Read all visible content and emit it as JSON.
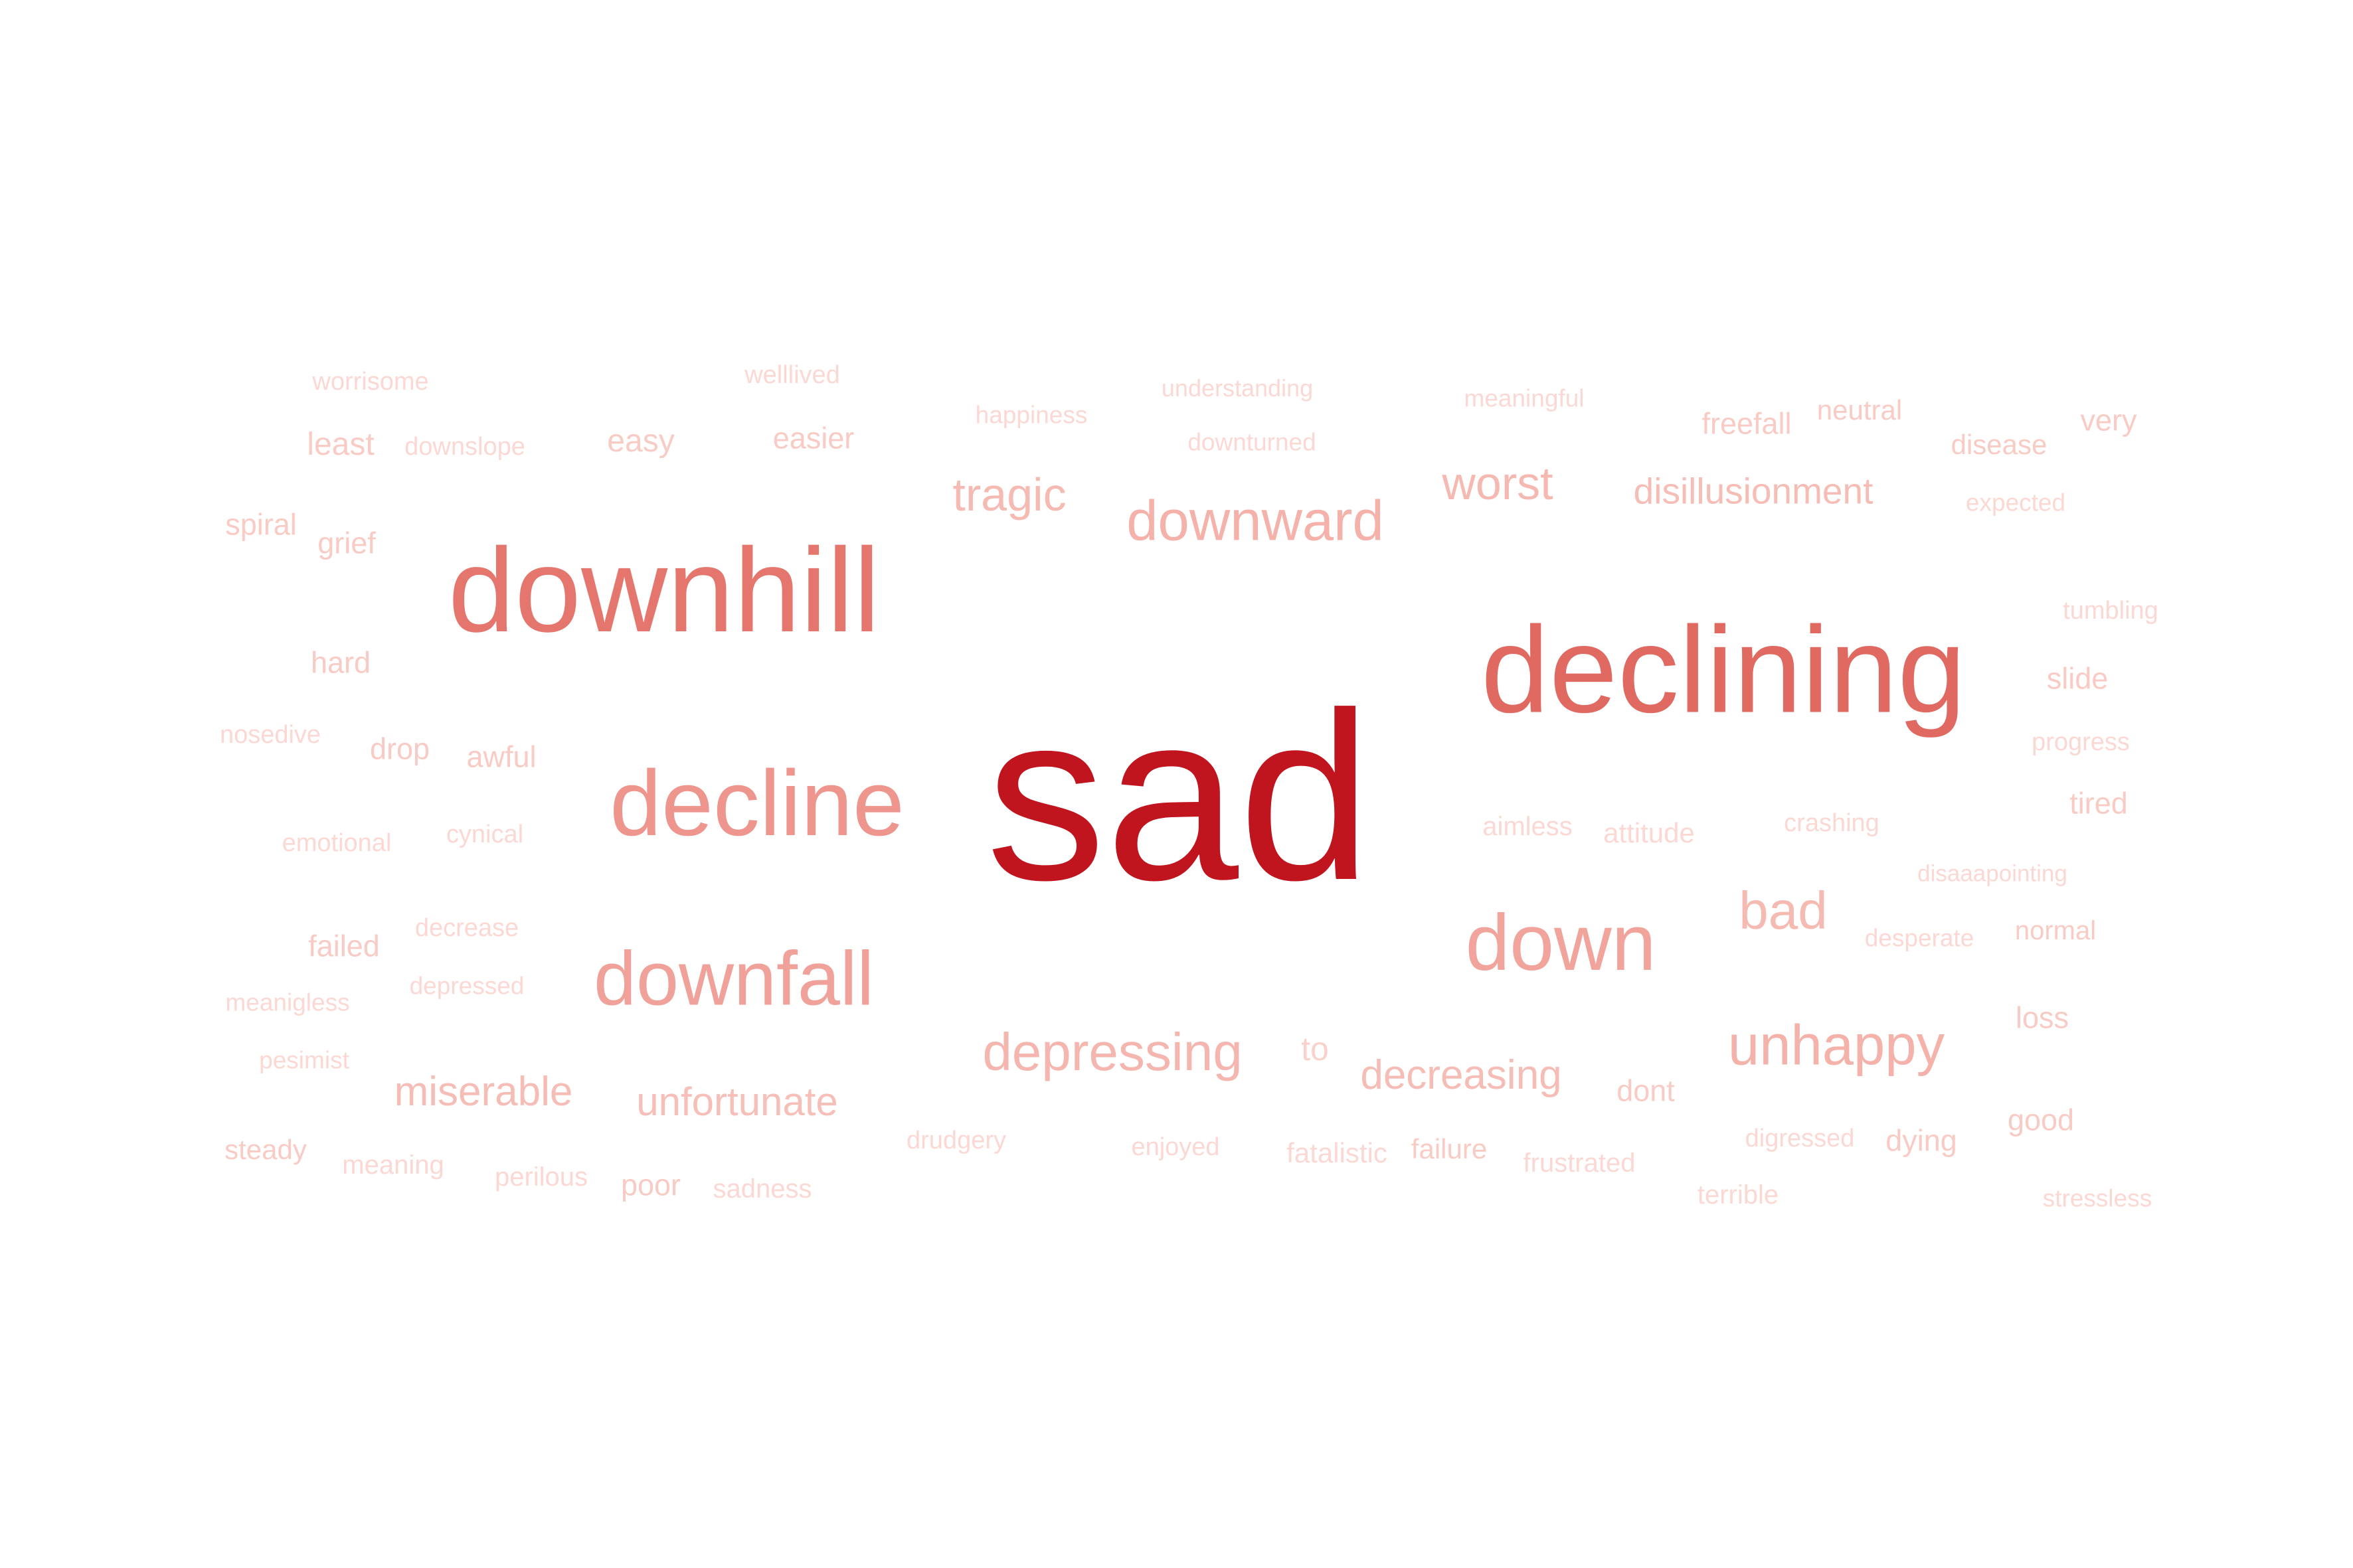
{
  "words": [
    {
      "text": "sad",
      "color": "#c0141f"
    },
    {
      "text": "declining",
      "color": "#e06a62"
    },
    {
      "text": "downhill",
      "color": "#e5766d"
    },
    {
      "text": "decline",
      "color": "#ee958d"
    },
    {
      "text": "downfall",
      "color": "#f0a199"
    },
    {
      "text": "down",
      "color": "#f1a49c"
    },
    {
      "text": "downward",
      "color": "#f4b2aa"
    },
    {
      "text": "unhappy",
      "color": "#f4b2aa"
    },
    {
      "text": "depressing",
      "color": "#f4b6ae"
    },
    {
      "text": "worst",
      "color": "#f5b9b1"
    },
    {
      "text": "tragic",
      "color": "#f5bab2"
    },
    {
      "text": "bad",
      "color": "#f5bab2"
    },
    {
      "text": "disillusionment",
      "color": "#f6bdb6"
    },
    {
      "text": "decreasing",
      "color": "#f6bdb6"
    },
    {
      "text": "miserable",
      "color": "#f6bdb6"
    },
    {
      "text": "unfortunate",
      "color": "#f6bfb8"
    },
    {
      "text": "to",
      "color": "#f9d2cc"
    },
    {
      "text": "worrisome",
      "color": "#fbd8d3"
    },
    {
      "text": "welllived",
      "color": "#fbd8d3"
    },
    {
      "text": "understanding",
      "color": "#fbd8d3"
    },
    {
      "text": "meaningful",
      "color": "#fbd8d3"
    },
    {
      "text": "happiness",
      "color": "#fbd8d3"
    },
    {
      "text": "neutral",
      "color": "#f8cbc5"
    },
    {
      "text": "very",
      "color": "#f8cbc5"
    },
    {
      "text": "freefall",
      "color": "#f8cbc5"
    },
    {
      "text": "least",
      "color": "#f8cbc5"
    },
    {
      "text": "downslope",
      "color": "#fbd8d3"
    },
    {
      "text": "easy",
      "color": "#f8cbc5"
    },
    {
      "text": "easier",
      "color": "#f8cbc5"
    },
    {
      "text": "downturned",
      "color": "#fbd8d3"
    },
    {
      "text": "disease",
      "color": "#f8cbc5"
    },
    {
      "text": "expected",
      "color": "#fbd8d3"
    },
    {
      "text": "spiral",
      "color": "#f8cbc5"
    },
    {
      "text": "grief",
      "color": "#f8cbc5"
    },
    {
      "text": "tumbling",
      "color": "#fbd8d3"
    },
    {
      "text": "hard",
      "color": "#f8cbc5"
    },
    {
      "text": "slide",
      "color": "#f8cbc5"
    },
    {
      "text": "nosedive",
      "color": "#fbd8d3"
    },
    {
      "text": "drop",
      "color": "#f8cbc5"
    },
    {
      "text": "awful",
      "color": "#f8cbc5"
    },
    {
      "text": "progress",
      "color": "#fbd8d3"
    },
    {
      "text": "tired",
      "color": "#f8cbc5"
    },
    {
      "text": "emotional",
      "color": "#fbd8d3"
    },
    {
      "text": "cynical",
      "color": "#fbd8d3"
    },
    {
      "text": "aimless",
      "color": "#fbd8d3"
    },
    {
      "text": "attitude",
      "color": "#fbd8d3"
    },
    {
      "text": "crashing",
      "color": "#fbd8d3"
    },
    {
      "text": "disaaapointing",
      "color": "#fbd8d3"
    },
    {
      "text": "failed",
      "color": "#f8cbc5"
    },
    {
      "text": "decrease",
      "color": "#fbd8d3"
    },
    {
      "text": "desperate",
      "color": "#fbd8d3"
    },
    {
      "text": "normal",
      "color": "#f8cbc5"
    },
    {
      "text": "meanigless",
      "color": "#fbd8d3"
    },
    {
      "text": "depressed",
      "color": "#fbd8d3"
    },
    {
      "text": "loss",
      "color": "#f8cbc5"
    },
    {
      "text": "pesimist",
      "color": "#fbd8d3"
    },
    {
      "text": "dont",
      "color": "#f8cbc5"
    },
    {
      "text": "good",
      "color": "#f8cbc5"
    },
    {
      "text": "drudgery",
      "color": "#fbd8d3"
    },
    {
      "text": "digressed",
      "color": "#fbd8d3"
    },
    {
      "text": "dying",
      "color": "#f8cbc5"
    },
    {
      "text": "steady",
      "color": "#f8cbc5"
    },
    {
      "text": "enjoyed",
      "color": "#fbd8d3"
    },
    {
      "text": "fatalistic",
      "color": "#fbd8d3"
    },
    {
      "text": "failure",
      "color": "#f8cbc5"
    },
    {
      "text": "meaning",
      "color": "#fbd8d3"
    },
    {
      "text": "frustrated",
      "color": "#fbd8d3"
    },
    {
      "text": "perilous",
      "color": "#fbd8d3"
    },
    {
      "text": "poor",
      "color": "#f8cbc5"
    },
    {
      "text": "sadness",
      "color": "#fbd8d3"
    },
    {
      "text": "terrible",
      "color": "#fbd8d3"
    },
    {
      "text": "stressless",
      "color": "#fbd8d3"
    }
  ]
}
